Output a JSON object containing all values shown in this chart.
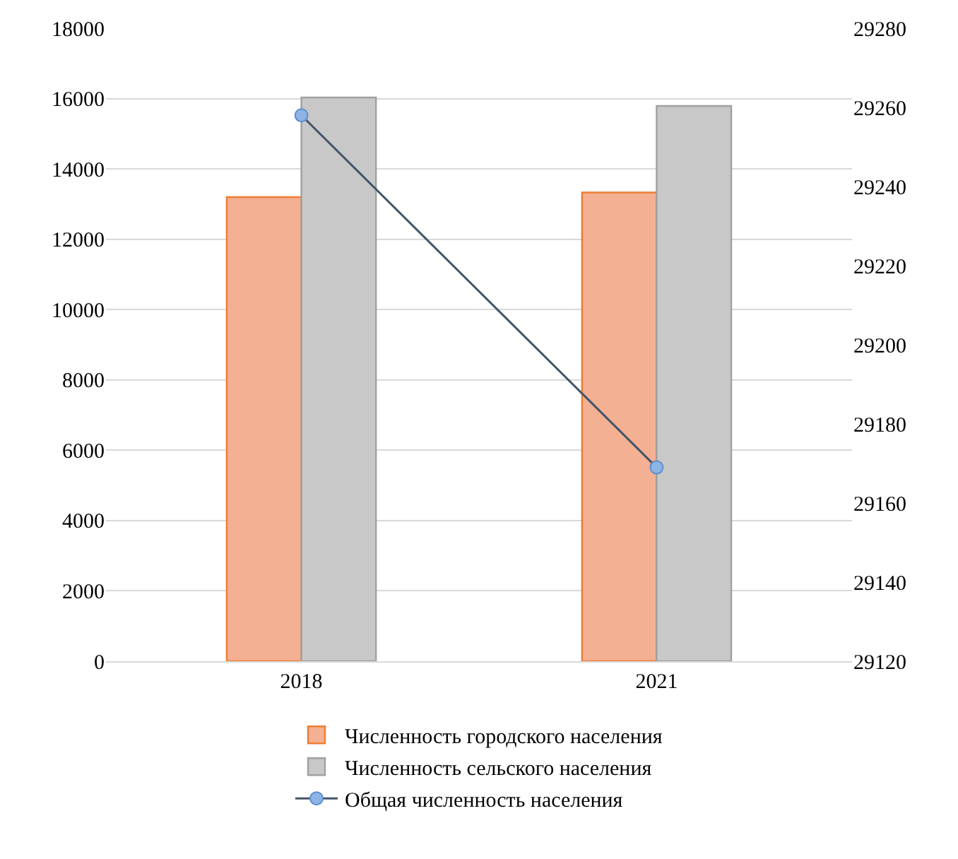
{
  "chart_data": {
    "type": "bar",
    "categories": [
      "2018",
      "2021"
    ],
    "series": [
      {
        "name": "Численность городского населения",
        "color": "#f4b093",
        "values": [
          13200,
          13330
        ]
      },
      {
        "name": "Численность сельского населения",
        "color": "#c8c8c8",
        "values": [
          16030,
          15790
        ]
      },
      {
        "name": "Общая численность населения",
        "type": "line",
        "axis": "y2",
        "color": "#44546a",
        "marker": "circle",
        "values": [
          29258,
          29169
        ]
      }
    ],
    "ylim": [
      0,
      18000
    ],
    "yticks": [
      0,
      2000,
      4000,
      6000,
      8000,
      10000,
      12000,
      14000,
      16000,
      18000
    ],
    "y2lim": [
      29120,
      29280
    ],
    "y2ticks": [
      29120,
      29140,
      29160,
      29180,
      29200,
      29220,
      29240,
      29260,
      29280
    ],
    "grid": "y",
    "legend": "bottom"
  }
}
